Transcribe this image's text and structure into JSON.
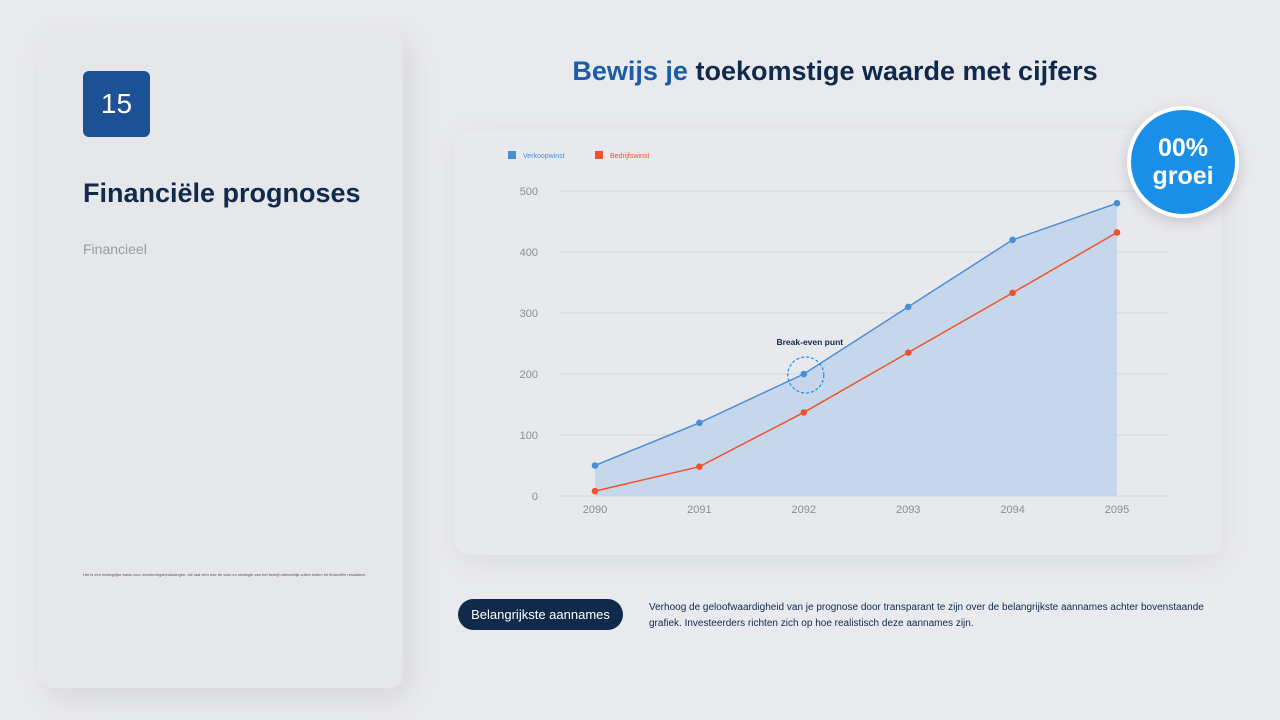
{
  "slide_number": "15",
  "left_panel": {
    "title": "Financiële prognoses",
    "subtitle": "Financieel",
    "footnote": "Het is een belangrijke basis voor investeringsbeslissingen, die laat zien hoe de visie en strategie van het bedrijf uiteindelijk zullen leiden tot financiële resultaten."
  },
  "heading": {
    "accent": "Bewijs je",
    "rest": " toekomstige waarde met cijfers"
  },
  "growth_badge": {
    "value": "00%",
    "label": "groei"
  },
  "bottom": {
    "button_label": "Belangrijkste aannames",
    "description": "Verhoog de geloofwaardigheid van je prognose door transparant te zijn over de belangrijkste aannames achter bovenstaande grafiek. Investeerders richten zich op hoe realistisch deze aannames zijn."
  },
  "chart_data": {
    "type": "line",
    "x": [
      "2090",
      "2091",
      "2092",
      "2093",
      "2094",
      "2095"
    ],
    "series": [
      {
        "name": "Verkoopwinst",
        "color": "#4a8fd6",
        "fill": true,
        "values": [
          50,
          120,
          200,
          310,
          420,
          480
        ]
      },
      {
        "name": "Bedrijfswinst",
        "color": "#f0522e",
        "fill": false,
        "values": [
          8,
          48,
          137,
          235,
          333,
          432
        ]
      }
    ],
    "yticks": [
      "0",
      "100",
      "200",
      "300",
      "400",
      "500"
    ],
    "ylim": [
      0,
      500
    ],
    "grid": true,
    "legend": "top-left",
    "annotation": {
      "text": "Break-even punt",
      "x": "2092",
      "y": 200
    }
  }
}
